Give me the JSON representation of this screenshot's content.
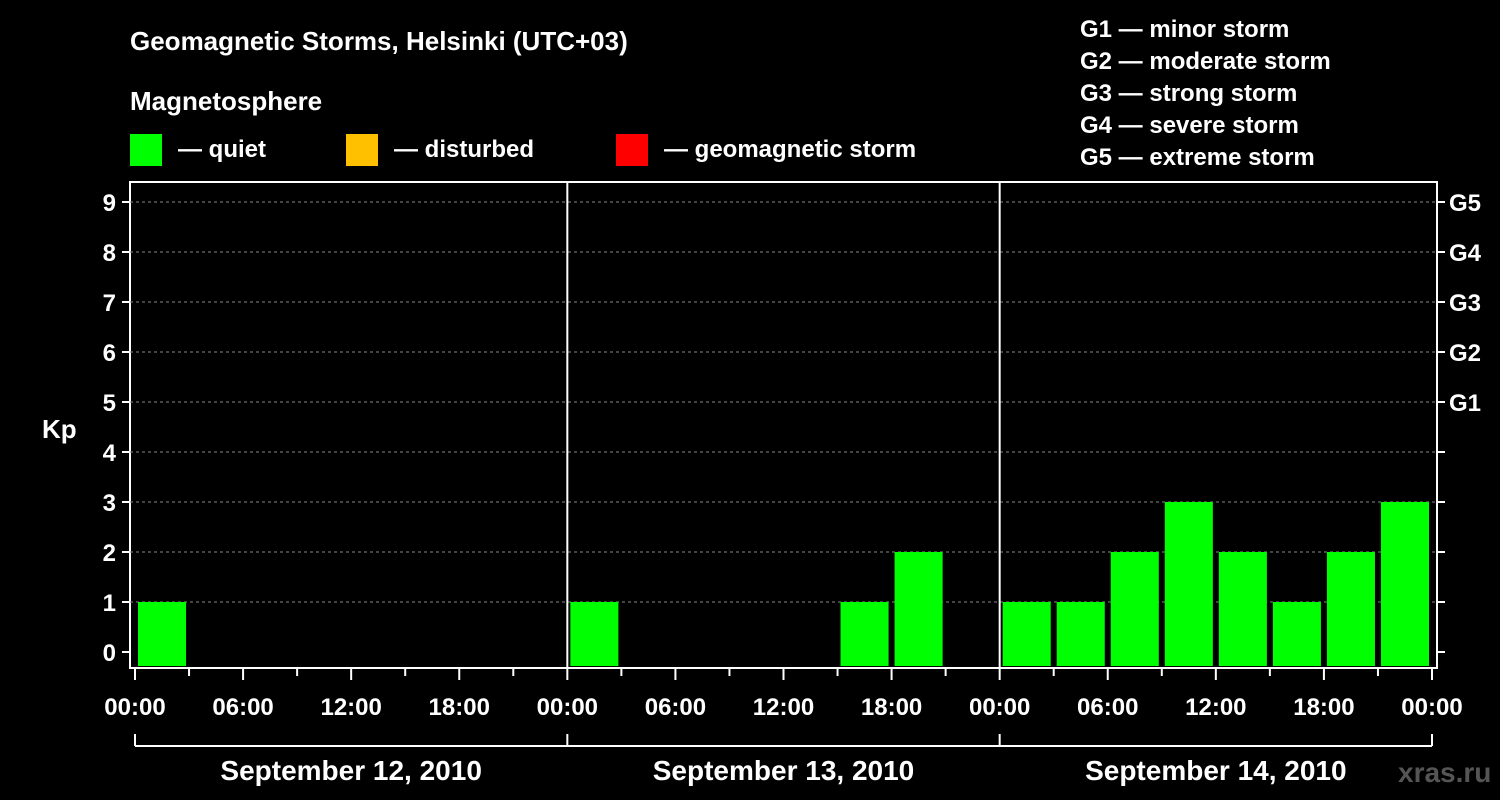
{
  "title": "Geomagnetic Storms, Helsinki (UTC+03)",
  "legend": {
    "heading": "Magnetosphere",
    "items": [
      {
        "label": "— quiet",
        "color": "#00ff00"
      },
      {
        "label": "— disturbed",
        "color": "#ffc000"
      },
      {
        "label": "— geomagnetic storm",
        "color": "#ff0000"
      }
    ]
  },
  "storm_scale": [
    "G1 — minor storm",
    "G2 — moderate storm",
    "G3 — strong storm",
    "G4 — severe storm",
    "G5 — extreme storm"
  ],
  "watermark": "xras.ru",
  "chart_data": {
    "type": "bar",
    "ylabel": "Kp",
    "ylim": [
      0,
      9
    ],
    "yticks": [
      "0",
      "1",
      "2",
      "3",
      "4",
      "5",
      "6",
      "7",
      "8",
      "9"
    ],
    "right_axis": [
      {
        "kp": 5,
        "label": "G1"
      },
      {
        "kp": 6,
        "label": "G2"
      },
      {
        "kp": 7,
        "label": "G3"
      },
      {
        "kp": 8,
        "label": "G4"
      },
      {
        "kp": 9,
        "label": "G5"
      }
    ],
    "grid": true,
    "xticks": [
      "00:00",
      "06:00",
      "12:00",
      "18:00",
      "00:00",
      "06:00",
      "12:00",
      "18:00",
      "00:00",
      "06:00",
      "12:00",
      "18:00",
      "00:00"
    ],
    "days": [
      "September 12, 2010",
      "September 13, 2010",
      "September 14, 2010"
    ],
    "interval_hours": 3,
    "series": [
      {
        "values": [
          1,
          0,
          0,
          0,
          0,
          0,
          0,
          0,
          1,
          0,
          0,
          0,
          0,
          1,
          2,
          0,
          1,
          1,
          2,
          3,
          2,
          1,
          2,
          3
        ],
        "color": "#00ff00"
      }
    ]
  }
}
